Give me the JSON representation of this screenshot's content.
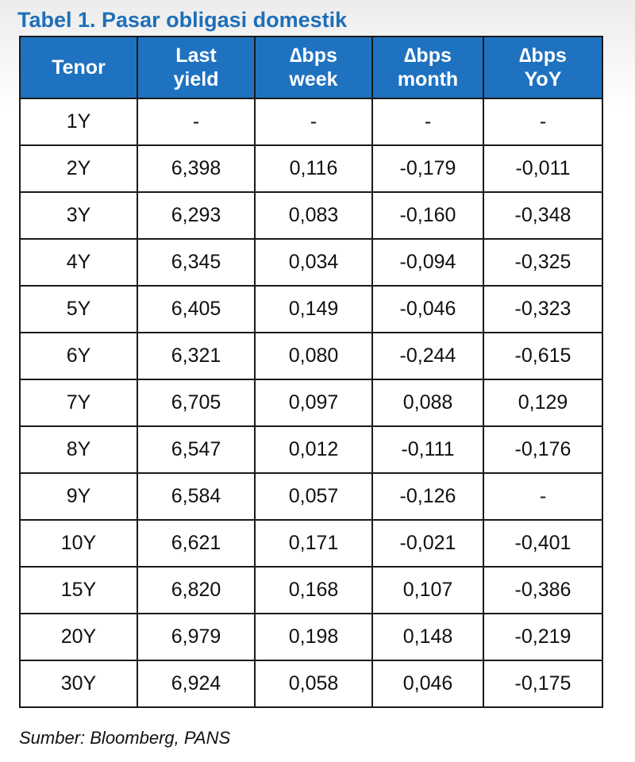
{
  "title": "Tabel 1. Pasar obligasi domestik",
  "table": {
    "headers": [
      {
        "line1": "Tenor",
        "line2": ""
      },
      {
        "line1": "Last",
        "line2": "yield"
      },
      {
        "line1": "∆bps",
        "line2": "week"
      },
      {
        "line1": "∆bps",
        "line2": "month"
      },
      {
        "line1": "∆bps",
        "line2": "YoY"
      }
    ],
    "rows": [
      [
        "1Y",
        "-",
        "-",
        "-",
        "-"
      ],
      [
        "2Y",
        "6,398",
        "0,116",
        "-0,179",
        "-0,011"
      ],
      [
        "3Y",
        "6,293",
        "0,083",
        "-0,160",
        "-0,348"
      ],
      [
        "4Y",
        "6,345",
        "0,034",
        "-0,094",
        "-0,325"
      ],
      [
        "5Y",
        "6,405",
        "0,149",
        "-0,046",
        "-0,323"
      ],
      [
        "6Y",
        "6,321",
        "0,080",
        "-0,244",
        "-0,615"
      ],
      [
        "7Y",
        "6,705",
        "0,097",
        "0,088",
        "0,129"
      ],
      [
        "8Y",
        "6,547",
        "0,012",
        "-0,111",
        "-0,176"
      ],
      [
        "9Y",
        "6,584",
        "0,057",
        "-0,126",
        "-"
      ],
      [
        "10Y",
        "6,621",
        "0,171",
        "-0,021",
        "-0,401"
      ],
      [
        "15Y",
        "6,820",
        "0,168",
        "0,107",
        "-0,386"
      ],
      [
        "20Y",
        "6,979",
        "0,198",
        "0,148",
        "-0,219"
      ],
      [
        "30Y",
        "6,924",
        "0,058",
        "0,046",
        "-0,175"
      ]
    ]
  },
  "source": "Sumber: Bloomberg, PANS",
  "colors": {
    "title": "#1e6fb8",
    "header_bg": "#1f72c0",
    "header_text": "#ffffff",
    "border": "#1a1a1a"
  }
}
